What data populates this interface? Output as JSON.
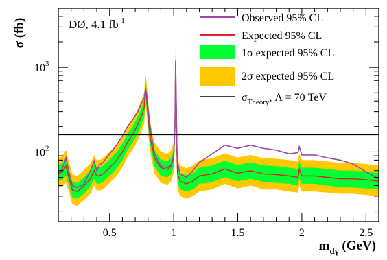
{
  "chart_data": {
    "type": "line",
    "annotation": {
      "text": "DØ, 4.1 fb",
      "superscript": "-1"
    },
    "ylabel": "σ (fb)",
    "xlabel": {
      "main": "m",
      "sub": "dγ",
      "unit": " (GeV)"
    },
    "xlim": [
      0.1,
      2.6
    ],
    "ylim": [
      15,
      5000
    ],
    "y_scale": "log",
    "x_ticks": [
      0.5,
      1,
      1.5,
      2,
      2.5
    ],
    "x_tick_labels": [
      "0.5",
      "1",
      "1.5",
      "2",
      "2.5"
    ],
    "y_major_ticks": [
      100,
      1000
    ],
    "y_tick_labels": [
      {
        "base": "10",
        "exp": "2"
      },
      {
        "base": "10",
        "exp": "3"
      }
    ],
    "grid": false,
    "legend_position": "top-right",
    "legend": {
      "observed": "Observed 95% CL",
      "expected": "Expected 95% CL",
      "band1": "1σ expected 95% CL",
      "band2": "2σ expected 95% CL",
      "theory": {
        "main": "σ",
        "sub": "Theory",
        "rest": ", Λ = 70 TeV"
      }
    },
    "colors": {
      "observed": "#9b4a9f",
      "expected": "#e0202c",
      "band1": "#00ff33",
      "band2": "#ffc800",
      "theory": "#000000"
    },
    "theory_value": 160,
    "x": [
      0.1,
      0.13,
      0.16,
      0.18,
      0.21,
      0.25,
      0.3,
      0.35,
      0.38,
      0.4,
      0.42,
      0.45,
      0.5,
      0.55,
      0.6,
      0.64,
      0.68,
      0.72,
      0.75,
      0.77,
      0.78,
      0.79,
      0.8,
      0.82,
      0.85,
      0.9,
      0.95,
      0.98,
      1.0,
      1.01,
      1.015,
      1.02,
      1.025,
      1.03,
      1.05,
      1.1,
      1.15,
      1.2,
      1.3,
      1.4,
      1.5,
      1.6,
      1.7,
      1.8,
      1.9,
      1.97,
      1.98,
      2.0,
      2.1,
      2.2,
      2.3,
      2.4,
      2.5,
      2.6
    ],
    "series": [
      {
        "name": "Observed 95% CL",
        "values": [
          55,
          62,
          85,
          60,
          40,
          38,
          42,
          60,
          78,
          60,
          70,
          75,
          95,
          118,
          155,
          200,
          240,
          300,
          380,
          430,
          560,
          480,
          330,
          180,
          95,
          68,
          65,
          70,
          90,
          200,
          1200,
          400,
          120,
          75,
          55,
          50,
          60,
          75,
          95,
          120,
          110,
          120,
          110,
          105,
          95,
          98,
          115,
          92,
          92,
          85,
          80,
          72,
          58,
          48
        ]
      },
      {
        "name": "Expected 95% CL",
        "values": [
          55,
          58,
          68,
          52,
          35,
          34,
          40,
          48,
          60,
          52,
          52,
          55,
          65,
          78,
          100,
          130,
          160,
          210,
          270,
          330,
          540,
          420,
          250,
          140,
          85,
          65,
          62,
          68,
          85,
          200,
          1150,
          380,
          100,
          55,
          45,
          42,
          45,
          52,
          55,
          63,
          56,
          60,
          55,
          54,
          52,
          50,
          62,
          52,
          52,
          50,
          48,
          48,
          47,
          45
        ]
      }
    ],
    "band_1sigma": {
      "lower": [
        45,
        47,
        52,
        42,
        29,
        28,
        32,
        39,
        48,
        42,
        42,
        44,
        52,
        62,
        80,
        105,
        128,
        165,
        215,
        260,
        430,
        335,
        200,
        112,
        68,
        52,
        50,
        54,
        68,
        160,
        920,
        300,
        80,
        44,
        36,
        34,
        36,
        42,
        44,
        50,
        45,
        48,
        44,
        43,
        42,
        40,
        50,
        42,
        42,
        40,
        38,
        38,
        37,
        36
      ],
      "upper": [
        69,
        73,
        85,
        65,
        44,
        43,
        50,
        60,
        75,
        65,
        65,
        69,
        81,
        98,
        125,
        163,
        200,
        263,
        338,
        413,
        675,
        525,
        313,
        175,
        106,
        81,
        78,
        85,
        106,
        250,
        1440,
        475,
        125,
        69,
        56,
        53,
        56,
        65,
        69,
        79,
        70,
        75,
        69,
        68,
        65,
        63,
        78,
        65,
        65,
        63,
        60,
        60,
        59,
        56
      ]
    },
    "band_2sigma": {
      "lower": [
        38,
        39,
        43,
        35,
        24,
        23,
        27,
        32,
        40,
        35,
        35,
        36,
        43,
        51,
        66,
        87,
        106,
        137,
        178,
        215,
        356,
        277,
        165,
        92,
        56,
        43,
        41,
        45,
        56,
        132,
        760,
        248,
        66,
        36,
        30,
        28,
        30,
        34,
        36,
        42,
        37,
        40,
        36,
        36,
        34,
        33,
        41,
        34,
        34,
        33,
        32,
        32,
        31,
        30
      ],
      "upper": [
        85,
        89,
        104,
        80,
        54,
        52,
        61,
        73,
        92,
        80,
        80,
        84,
        100,
        120,
        153,
        200,
        245,
        322,
        414,
        506,
        827,
        643,
        383,
        214,
        130,
        100,
        95,
        104,
        130,
        306,
        1760,
        582,
        153,
        84,
        69,
        64,
        69,
        80,
        84,
        96,
        86,
        92,
        84,
        83,
        80,
        77,
        95,
        80,
        80,
        77,
        74,
        74,
        72,
        69
      ]
    }
  }
}
